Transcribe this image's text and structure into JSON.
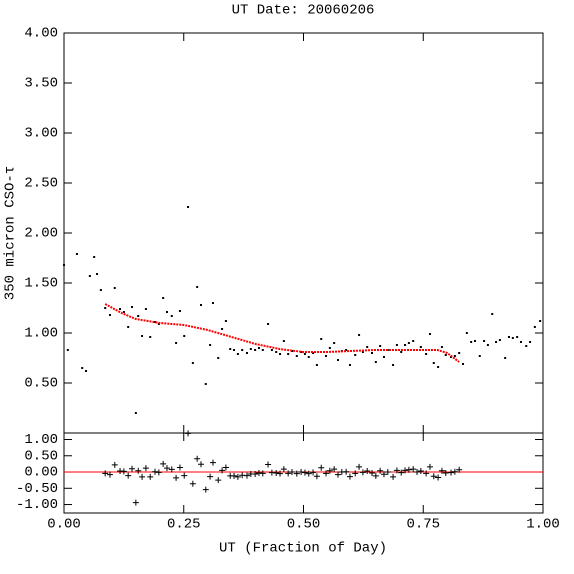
{
  "chart_data": [
    {
      "type": "scatter",
      "title": "UT Date: 20060206",
      "y_label": "350 micron CSO-τ",
      "xlim": [
        0,
        1
      ],
      "xticks": [
        0,
        0.25,
        0.5,
        0.75,
        1
      ],
      "ylim": [
        0,
        4
      ],
      "yticks": [
        {
          "value": 0.5,
          "label": "0.50"
        },
        {
          "value": 1,
          "label": "1.00"
        },
        {
          "value": 1.5,
          "label": "1.50"
        },
        {
          "value": 2,
          "label": "2.00"
        },
        {
          "value": 2.5,
          "label": "2.50"
        },
        {
          "value": 3,
          "label": "3.00"
        },
        {
          "value": 3.5,
          "label": "3.50"
        },
        {
          "value": 4,
          "label": "4.00"
        }
      ],
      "series": [
        {
          "color": "#000000",
          "marker": "dot",
          "x": [
            0.0,
            0.008,
            0.027,
            0.038,
            0.046,
            0.054,
            0.063,
            0.069,
            0.077,
            0.086,
            0.096,
            0.106,
            0.117,
            0.125,
            0.134,
            0.142,
            0.15,
            0.155,
            0.163,
            0.171,
            0.18,
            0.19,
            0.198,
            0.207,
            0.215,
            0.225,
            0.234,
            0.242,
            0.251,
            0.259,
            0.269,
            0.278,
            0.286,
            0.296,
            0.305,
            0.311,
            0.322,
            0.33,
            0.338,
            0.347,
            0.355,
            0.363,
            0.372,
            0.382,
            0.39,
            0.399,
            0.407,
            0.415,
            0.426,
            0.434,
            0.443,
            0.451,
            0.459,
            0.468,
            0.476,
            0.486,
            0.495,
            0.503,
            0.511,
            0.52,
            0.528,
            0.537,
            0.547,
            0.555,
            0.564,
            0.572,
            0.58,
            0.589,
            0.597,
            0.608,
            0.616,
            0.624,
            0.633,
            0.643,
            0.651,
            0.66,
            0.668,
            0.676,
            0.687,
            0.695,
            0.704,
            0.712,
            0.72,
            0.729,
            0.737,
            0.745,
            0.756,
            0.764,
            0.772,
            0.781,
            0.789,
            0.797,
            0.808,
            0.816,
            0.825,
            0.833,
            0.841,
            0.85,
            0.858,
            0.868,
            0.877,
            0.885,
            0.894,
            0.902,
            0.91,
            0.921,
            0.929,
            0.937,
            0.946,
            0.954,
            0.965,
            0.973,
            0.983,
            0.994
          ],
          "values": [
            1.68,
            0.83,
            1.79,
            0.65,
            0.62,
            1.57,
            1.76,
            1.59,
            1.43,
            1.25,
            1.18,
            1.45,
            1.24,
            1.21,
            1.06,
            1.26,
            0.2,
            1.17,
            0.97,
            1.24,
            0.96,
            1.11,
            1.09,
            1.35,
            1.21,
            1.17,
            0.9,
            1.22,
            0.97,
            2.26,
            0.7,
            1.46,
            1.28,
            0.49,
            0.88,
            1.3,
            0.75,
            1.04,
            1.12,
            0.84,
            0.83,
            0.79,
            0.83,
            0.8,
            0.84,
            0.83,
            0.85,
            0.83,
            1.09,
            0.83,
            0.81,
            0.79,
            0.92,
            0.79,
            0.82,
            0.77,
            0.81,
            0.79,
            0.76,
            0.8,
            0.68,
            0.94,
            0.77,
            0.85,
            0.9,
            0.73,
            0.82,
            0.83,
            0.68,
            0.78,
            0.98,
            0.81,
            0.86,
            0.8,
            0.71,
            0.87,
            0.76,
            0.83,
            0.68,
            0.88,
            0.81,
            0.88,
            0.9,
            0.92,
            0.83,
            0.86,
            0.79,
            0.99,
            0.7,
            0.66,
            0.86,
            0.78,
            0.76,
            0.77,
            0.8,
            0.69,
            1.0,
            0.91,
            0.92,
            0.77,
            0.92,
            0.88,
            1.19,
            0.91,
            0.93,
            0.75,
            0.96,
            0.95,
            0.96,
            0.91,
            0.87,
            0.91,
            1.06,
            1.12
          ]
        },
        {
          "color": "#ff0000",
          "style": "line",
          "x": [
            0.086,
            0.12,
            0.15,
            0.2,
            0.25,
            0.3,
            0.35,
            0.4,
            0.45,
            0.5,
            0.55,
            0.6,
            0.65,
            0.7,
            0.75,
            0.78,
            0.8,
            0.825
          ],
          "values": [
            1.29,
            1.2,
            1.14,
            1.1,
            1.08,
            1.03,
            0.96,
            0.89,
            0.84,
            0.81,
            0.81,
            0.82,
            0.83,
            0.83,
            0.83,
            0.83,
            0.8,
            0.71
          ]
        }
      ]
    },
    {
      "type": "scatter",
      "x_label": "UT (Fraction of Day)",
      "xlim": [
        0,
        1
      ],
      "xticks": [
        {
          "value": 0,
          "label": "0.00"
        },
        {
          "value": 0.25,
          "label": "0.25"
        },
        {
          "value": 0.5,
          "label": "0.50"
        },
        {
          "value": 0.75,
          "label": "0.75"
        },
        {
          "value": 1,
          "label": "1.00"
        }
      ],
      "ylim": [
        -1.26,
        1.2
      ],
      "yticks": [
        {
          "value": -1,
          "label": "-1.00"
        },
        {
          "value": -0.5,
          "label": "-0.50"
        },
        {
          "value": 0,
          "label": "0.00"
        },
        {
          "value": 0.5,
          "label": "0.50"
        },
        {
          "value": 1,
          "label": "1.00"
        }
      ],
      "reference_line": {
        "value": 0,
        "color": "#ff0000"
      },
      "series": [
        {
          "color": "#000000",
          "marker": "plus",
          "x": [
            0.086,
            0.096,
            0.106,
            0.117,
            0.125,
            0.134,
            0.142,
            0.15,
            0.155,
            0.163,
            0.171,
            0.18,
            0.19,
            0.198,
            0.207,
            0.215,
            0.225,
            0.234,
            0.242,
            0.251,
            0.259,
            0.269,
            0.278,
            0.286,
            0.296,
            0.305,
            0.311,
            0.322,
            0.33,
            0.338,
            0.347,
            0.355,
            0.363,
            0.372,
            0.382,
            0.39,
            0.399,
            0.407,
            0.415,
            0.426,
            0.434,
            0.443,
            0.451,
            0.459,
            0.468,
            0.476,
            0.486,
            0.495,
            0.503,
            0.511,
            0.52,
            0.528,
            0.537,
            0.547,
            0.555,
            0.564,
            0.572,
            0.58,
            0.589,
            0.597,
            0.608,
            0.616,
            0.624,
            0.633,
            0.643,
            0.651,
            0.66,
            0.668,
            0.676,
            0.687,
            0.695,
            0.704,
            0.712,
            0.72,
            0.729,
            0.737,
            0.745,
            0.756,
            0.764,
            0.772,
            0.781,
            0.789,
            0.797,
            0.808,
            0.816,
            0.825
          ],
          "values": [
            -0.04,
            -0.08,
            0.22,
            0.03,
            0.02,
            -0.11,
            0.1,
            -0.94,
            0.04,
            -0.15,
            0.12,
            -0.15,
            0.01,
            -0.01,
            0.25,
            0.12,
            0.08,
            -0.18,
            0.14,
            -0.11,
            1.19,
            -0.36,
            0.41,
            0.24,
            -0.54,
            -0.14,
            0.29,
            -0.25,
            0.05,
            0.14,
            -0.12,
            -0.12,
            -0.15,
            -0.1,
            -0.11,
            -0.06,
            -0.06,
            -0.03,
            -0.04,
            0.23,
            -0.02,
            -0.03,
            -0.05,
            0.09,
            -0.04,
            0.0,
            -0.05,
            0.0,
            -0.02,
            -0.05,
            -0.01,
            -0.13,
            0.13,
            -0.04,
            0.04,
            0.09,
            -0.08,
            0.0,
            0.01,
            -0.14,
            -0.04,
            0.16,
            -0.01,
            0.03,
            -0.03,
            -0.12,
            0.04,
            -0.07,
            0.0,
            -0.15,
            0.05,
            -0.02,
            0.05,
            0.07,
            0.09,
            0.0,
            0.03,
            -0.04,
            0.16,
            -0.13,
            -0.17,
            0.04,
            -0.03,
            -0.02,
            0.01,
            0.07
          ]
        }
      ]
    }
  ]
}
